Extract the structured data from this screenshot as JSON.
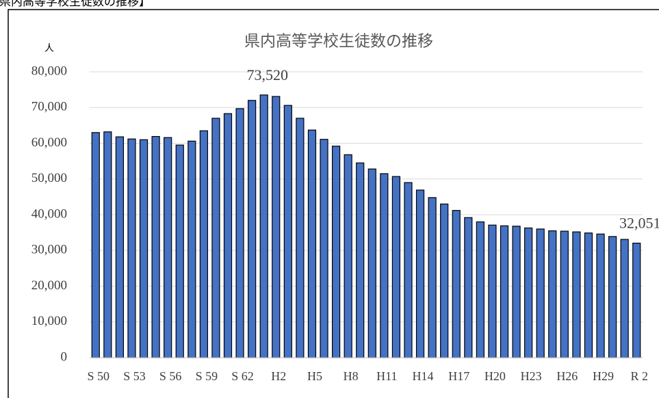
{
  "heading": "【県内高等学校生徒数の推移】",
  "chart_data": {
    "type": "bar",
    "title": "県内高等学校生徒数の推移",
    "y_label": "人",
    "categories": [
      "S 50",
      null,
      null,
      "S 53",
      null,
      null,
      "S 56",
      null,
      null,
      "S 59",
      null,
      null,
      "S 62",
      null,
      null,
      "H2",
      null,
      null,
      "H5",
      null,
      null,
      "H8",
      null,
      null,
      "H11",
      null,
      null,
      "H14",
      null,
      null,
      "H17",
      null,
      null,
      "H20",
      null,
      null,
      "H23",
      null,
      null,
      "H26",
      null,
      null,
      "H29",
      null,
      null,
      "R 2"
    ],
    "values": [
      63000,
      63200,
      61800,
      61200,
      61000,
      61900,
      61600,
      59500,
      60600,
      63500,
      67000,
      68300,
      69700,
      72000,
      73520,
      73100,
      70600,
      67000,
      63700,
      61100,
      59200,
      56800,
      54500,
      52800,
      51500,
      50700,
      49000,
      46900,
      44800,
      43000,
      41200,
      39200,
      38000,
      37100,
      36900,
      36800,
      36300,
      36000,
      35500,
      35400,
      35200,
      34900,
      34600,
      33900,
      33100,
      32051
    ],
    "value_labels": [
      null,
      null,
      null,
      null,
      null,
      null,
      null,
      null,
      null,
      null,
      null,
      null,
      null,
      null,
      "73,520",
      null,
      null,
      null,
      null,
      null,
      null,
      null,
      null,
      null,
      null,
      null,
      null,
      null,
      null,
      null,
      null,
      null,
      null,
      null,
      null,
      null,
      null,
      null,
      null,
      null,
      null,
      null,
      null,
      null,
      null,
      "32,051"
    ],
    "color": "#4472c4",
    "ylim": [
      0,
      80000
    ],
    "yticks": [
      0,
      {
        "value": 10000,
        "label": "10,000"
      },
      {
        "value": 20000,
        "label": "20,000"
      },
      {
        "value": 30000,
        "label": "30,000"
      },
      {
        "value": 40000,
        "label": "40,000"
      },
      {
        "value": 50000,
        "label": "50,000"
      },
      {
        "value": 60000,
        "label": "60,000"
      },
      {
        "value": 70000,
        "label": "70,000"
      },
      {
        "value": 80000,
        "label": "80,000"
      }
    ],
    "grid": true
  }
}
